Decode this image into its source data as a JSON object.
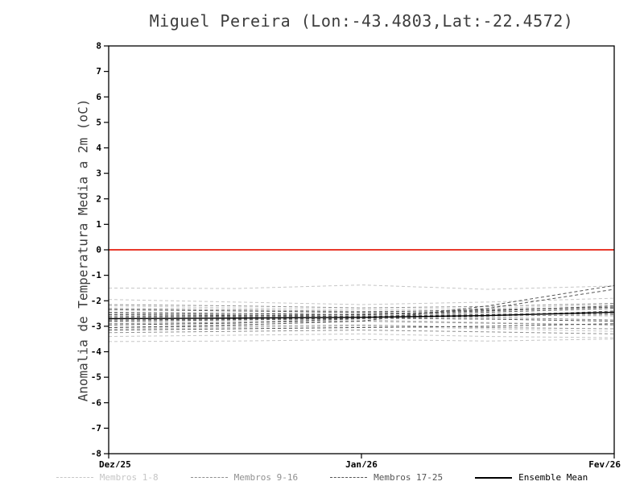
{
  "chart_data": {
    "type": "line",
    "title": "Miguel Pereira (Lon:-43.4803,Lat:-22.4572)",
    "xlabel": "",
    "ylabel": "Anomalia de Temperatura Media a 2m (oC)",
    "ylim": [
      -8,
      8
    ],
    "yticks": [
      8,
      7,
      6,
      5,
      4,
      3,
      2,
      1,
      0,
      -1,
      -2,
      -3,
      -4,
      -5,
      -6,
      -7,
      -8
    ],
    "xtick_labels": [
      "Dez/25",
      "Jan/26",
      "Fev/26"
    ],
    "grid": false,
    "zero_line": {
      "y": 0,
      "color": "#e8392b"
    },
    "groups": [
      {
        "name": "Membros 1-8",
        "color": "#c6c6c6",
        "dash": "4,3",
        "series": [
          [
            -1.5,
            -1.52,
            -1.38,
            -1.55,
            -1.42
          ],
          [
            -1.95,
            -2.05,
            -2.15,
            -2.05,
            -1.9
          ],
          [
            -2.2,
            -2.28,
            -2.35,
            -2.3,
            -2.15
          ],
          [
            -2.55,
            -2.5,
            -2.45,
            -2.55,
            -2.6
          ],
          [
            -2.85,
            -2.8,
            -2.75,
            -2.85,
            -2.95
          ],
          [
            -3.1,
            -3.05,
            -3.0,
            -3.1,
            -3.2
          ],
          [
            -3.4,
            -3.35,
            -3.3,
            -3.4,
            -3.45
          ],
          [
            -3.6,
            -3.58,
            -3.52,
            -3.58,
            -3.5
          ]
        ]
      },
      {
        "name": "Membros 9-16",
        "color": "#909090",
        "dash": "4,3",
        "series": [
          [
            -2.3,
            -2.35,
            -2.42,
            -2.38,
            -2.25
          ],
          [
            -2.5,
            -2.55,
            -2.6,
            -2.52,
            -2.45
          ],
          [
            -2.7,
            -2.65,
            -2.58,
            -2.66,
            -2.75
          ],
          [
            -2.9,
            -2.85,
            -2.8,
            -2.88,
            -2.95
          ],
          [
            -3.05,
            -3.0,
            -2.95,
            -3.05,
            -3.1
          ],
          [
            -3.25,
            -3.2,
            -3.15,
            -3.22,
            -3.3
          ],
          [
            -2.15,
            -2.2,
            -2.28,
            -2.22,
            -2.1
          ],
          [
            -2.6,
            -2.62,
            -2.66,
            -2.6,
            -2.55
          ]
        ]
      },
      {
        "name": "Membros 17-25",
        "color": "#555555",
        "dash": "4,3",
        "series": [
          [
            -2.45,
            -2.5,
            -2.55,
            -2.45,
            -2.3
          ],
          [
            -2.65,
            -2.6,
            -2.52,
            -2.4,
            -2.2
          ],
          [
            -2.8,
            -2.75,
            -2.7,
            -2.6,
            -2.4
          ],
          [
            -2.95,
            -2.88,
            -2.7,
            -2.3,
            -1.55
          ],
          [
            -3.05,
            -2.95,
            -2.8,
            -2.2,
            -1.4
          ],
          [
            -2.55,
            -2.58,
            -2.62,
            -2.55,
            -2.5
          ],
          [
            -3.15,
            -3.1,
            -3.05,
            -3.0,
            -2.9
          ],
          [
            -2.35,
            -2.4,
            -2.45,
            -2.35,
            -2.25
          ],
          [
            -2.75,
            -2.72,
            -2.68,
            -2.72,
            -2.8
          ]
        ]
      }
    ],
    "ensemble_mean": {
      "name": "Ensemble Mean",
      "color": "#000000",
      "values": [
        -2.7,
        -2.68,
        -2.65,
        -2.58,
        -2.45
      ]
    },
    "legend_position": "bottom"
  },
  "legend": {
    "items": [
      {
        "label": "Membros 1-8",
        "color": "#c6c6c6",
        "style": "dashed"
      },
      {
        "label": "Membros 9-16",
        "color": "#909090",
        "style": "dashed"
      },
      {
        "label": "Membros 17-25",
        "color": "#555555",
        "style": "dashed"
      },
      {
        "label": "Ensemble Mean",
        "color": "#000000",
        "style": "solid"
      }
    ]
  }
}
